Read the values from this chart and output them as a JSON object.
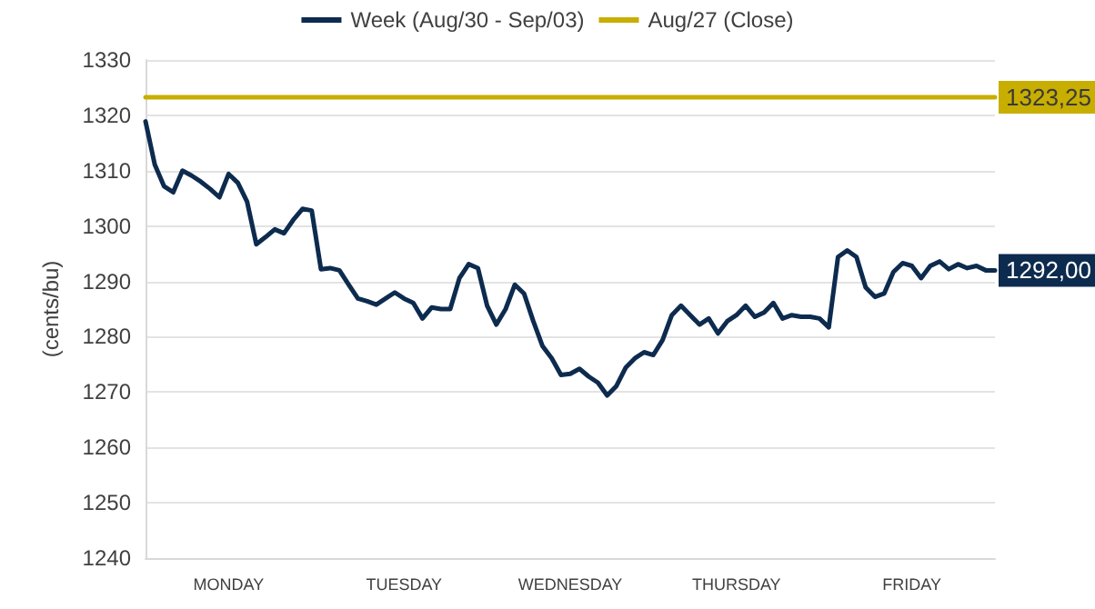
{
  "chart_data": {
    "type": "line",
    "ylabel": "(cents/bu)",
    "legend": "top",
    "grid": "y",
    "marker": "none",
    "line_style": "solid",
    "categories": [
      null,
      null,
      null,
      null,
      null,
      null,
      null,
      null,
      null,
      "MONDAY",
      null,
      null,
      null,
      null,
      null,
      null,
      null,
      null,
      null,
      null,
      null,
      null,
      null,
      null,
      null,
      null,
      null,
      null,
      "TUESDAY",
      null,
      null,
      null,
      null,
      null,
      null,
      null,
      null,
      null,
      null,
      null,
      null,
      null,
      null,
      null,
      null,
      null,
      "WEDNESDAY",
      null,
      null,
      null,
      null,
      null,
      null,
      null,
      null,
      null,
      null,
      null,
      null,
      null,
      null,
      null,
      null,
      null,
      "THURSDAY",
      null,
      null,
      null,
      null,
      null,
      null,
      null,
      null,
      null,
      null,
      null,
      null,
      null,
      null,
      null,
      null,
      null,
      null,
      "FRIDAY",
      null,
      null,
      null,
      null,
      null,
      null,
      null,
      null,
      null
    ],
    "ylim": [
      1240,
      1330
    ],
    "yticks": [
      1240,
      1250,
      1260,
      1270,
      1280,
      1290,
      1300,
      1310,
      1320,
      1330
    ],
    "series": [
      {
        "name": "Week (Aug/30 - Sep/03)",
        "color": "#0d2b4e",
        "values": [
          1318.9,
          1311.1,
          1307.2,
          1306.1,
          1310,
          1309.1,
          1308,
          1306.7,
          1305.2,
          1309.4,
          1307.8,
          1304.4,
          1296.7,
          1298,
          1299.4,
          1298.7,
          1301.1,
          1303.1,
          1302.8,
          1292.2,
          1292.4,
          1292,
          1289.4,
          1286.9,
          1286.4,
          1285.8,
          1286.9,
          1288,
          1286.9,
          1286.1,
          1283.3,
          1285.3,
          1285,
          1285,
          1290.6,
          1293.1,
          1292.4,
          1285.6,
          1282.2,
          1285,
          1289.4,
          1287.8,
          1282.8,
          1278.3,
          1276.1,
          1273.1,
          1273.3,
          1274.2,
          1272.8,
          1271.7,
          1269.4,
          1271.1,
          1274.4,
          1276.1,
          1277.2,
          1276.7,
          1279.4,
          1283.9,
          1285.6,
          1283.9,
          1282.2,
          1283.3,
          1280.6,
          1282.8,
          1283.9,
          1285.6,
          1283.6,
          1284.4,
          1286.1,
          1283.3,
          1283.9,
          1283.6,
          1283.6,
          1283.3,
          1281.7,
          1294.4,
          1295.6,
          1294.4,
          1288.9,
          1287.2,
          1287.8,
          1291.7,
          1293.3,
          1292.8,
          1290.6,
          1292.8,
          1293.6,
          1292.2,
          1293.1,
          1292.4,
          1292.8,
          1292,
          1292
        ],
        "value_labels": [
          null,
          null,
          null,
          null,
          null,
          null,
          null,
          null,
          null,
          null,
          null,
          null,
          null,
          null,
          null,
          null,
          null,
          null,
          null,
          null,
          null,
          null,
          null,
          null,
          null,
          null,
          null,
          null,
          null,
          null,
          null,
          null,
          null,
          null,
          null,
          null,
          null,
          null,
          null,
          null,
          null,
          null,
          null,
          null,
          null,
          null,
          null,
          null,
          null,
          null,
          null,
          null,
          null,
          null,
          null,
          null,
          null,
          null,
          null,
          null,
          null,
          null,
          null,
          null,
          null,
          null,
          null,
          null,
          null,
          null,
          null,
          null,
          null,
          null,
          null,
          null,
          null,
          null,
          null,
          null,
          null,
          null,
          null,
          null,
          null,
          null,
          null,
          null,
          null,
          null,
          null,
          null,
          "1292,00"
        ]
      },
      {
        "name": "Aug/27 (Close)",
        "color": "#c8ae00",
        "values": [
          1323.25,
          1323.25,
          1323.25,
          1323.25,
          1323.25,
          1323.25,
          1323.25,
          1323.25,
          1323.25,
          1323.25,
          1323.25,
          1323.25,
          1323.25,
          1323.25,
          1323.25,
          1323.25,
          1323.25,
          1323.25,
          1323.25,
          1323.25,
          1323.25,
          1323.25,
          1323.25,
          1323.25,
          1323.25,
          1323.25,
          1323.25,
          1323.25,
          1323.25,
          1323.25,
          1323.25,
          1323.25,
          1323.25,
          1323.25,
          1323.25,
          1323.25,
          1323.25,
          1323.25,
          1323.25,
          1323.25,
          1323.25,
          1323.25,
          1323.25,
          1323.25,
          1323.25,
          1323.25,
          1323.25,
          1323.25,
          1323.25,
          1323.25,
          1323.25,
          1323.25,
          1323.25,
          1323.25,
          1323.25,
          1323.25,
          1323.25,
          1323.25,
          1323.25,
          1323.25,
          1323.25,
          1323.25,
          1323.25,
          1323.25,
          1323.25,
          1323.25,
          1323.25,
          1323.25,
          1323.25,
          1323.25,
          1323.25,
          1323.25,
          1323.25,
          1323.25,
          1323.25,
          1323.25,
          1323.25,
          1323.25,
          1323.25,
          1323.25,
          1323.25,
          1323.25,
          1323.25,
          1323.25,
          1323.25,
          1323.25,
          1323.25,
          1323.25,
          1323.25,
          1323.25,
          1323.25,
          1323.25,
          1323.25
        ],
        "value_labels": [
          null,
          null,
          null,
          null,
          null,
          null,
          null,
          null,
          null,
          null,
          null,
          null,
          null,
          null,
          null,
          null,
          null,
          null,
          null,
          null,
          null,
          null,
          null,
          null,
          null,
          null,
          null,
          null,
          null,
          null,
          null,
          null,
          null,
          null,
          null,
          null,
          null,
          null,
          null,
          null,
          null,
          null,
          null,
          null,
          null,
          null,
          null,
          null,
          null,
          null,
          null,
          null,
          null,
          null,
          null,
          null,
          null,
          null,
          null,
          null,
          null,
          null,
          null,
          null,
          null,
          null,
          null,
          null,
          null,
          null,
          null,
          null,
          null,
          null,
          null,
          null,
          null,
          null,
          null,
          null,
          null,
          null,
          null,
          null,
          null,
          null,
          null,
          null,
          null,
          null,
          null,
          null,
          "1323,25"
        ]
      }
    ]
  }
}
